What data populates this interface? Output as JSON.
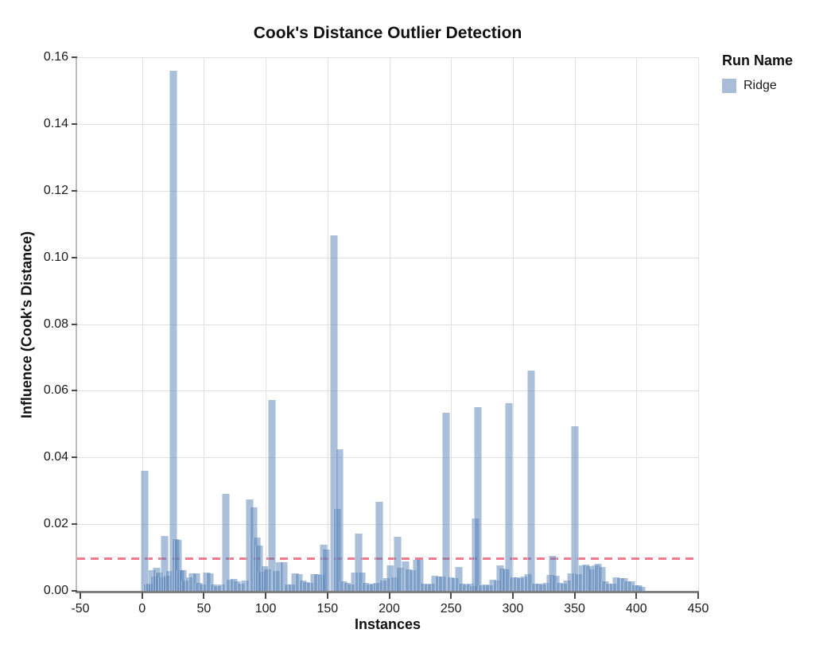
{
  "title": "Cook's Distance Outlier Detection",
  "legend": {
    "title": "Run Name",
    "items": [
      {
        "label": "Ridge",
        "color": "#a9bdd8"
      }
    ]
  },
  "colors": {
    "bar_fill_rgba": "rgba(83,127,181,0.5)",
    "threshold_line": "#f3798e",
    "grid": "#e0e0e0",
    "left_spine": "#bdbdbd",
    "bottom_spine": "#7f7f7f",
    "text": "#111111"
  },
  "chart_data": {
    "type": "bar",
    "title": "Cook's Distance Outlier Detection",
    "xlabel": "Instances",
    "ylabel": "Influence (Cook's Distance)",
    "xlim": [
      -50,
      450
    ],
    "ylim": [
      0,
      0.16
    ],
    "x_ticks": [
      -50,
      0,
      50,
      100,
      150,
      200,
      250,
      300,
      350,
      400,
      450
    ],
    "x_tick_labels": [
      "-50",
      "0",
      "50",
      "100",
      "150",
      "200",
      "250",
      "300",
      "350",
      "400",
      "450"
    ],
    "y_ticks": [
      0,
      0.02,
      0.04,
      0.06,
      0.08,
      0.1,
      0.12,
      0.14,
      0.16
    ],
    "y_tick_labels": [
      "0.00",
      "0.02",
      "0.04",
      "0.06",
      "0.08",
      "0.10",
      "0.12",
      "0.14",
      "0.16"
    ],
    "grid": true,
    "legend_position": "right",
    "threshold": 0.01,
    "series": [
      {
        "name": "Ridge",
        "points": [
          [
            2,
            0.036
          ],
          [
            4,
            0.002
          ],
          [
            6,
            0.0021
          ],
          [
            8,
            0.0063
          ],
          [
            10,
            0.0042
          ],
          [
            12,
            0.0069
          ],
          [
            14,
            0.0055
          ],
          [
            16,
            0.004
          ],
          [
            18,
            0.0165
          ],
          [
            20,
            0.0045
          ],
          [
            22,
            0.006
          ],
          [
            25,
            0.156
          ],
          [
            27,
            0.0155
          ],
          [
            29,
            0.0152
          ],
          [
            31,
            0.0063
          ],
          [
            33,
            0.0062
          ],
          [
            35,
            0.003
          ],
          [
            38,
            0.0041
          ],
          [
            41,
            0.0052
          ],
          [
            44,
            0.0053
          ],
          [
            46,
            0.0025
          ],
          [
            49,
            0.002
          ],
          [
            52,
            0.0055
          ],
          [
            55,
            0.0052
          ],
          [
            58,
            0.002
          ],
          [
            61,
            0.0015
          ],
          [
            64,
            0.002
          ],
          [
            68,
            0.029
          ],
          [
            71,
            0.0033
          ],
          [
            74,
            0.0035
          ],
          [
            77,
            0.0028
          ],
          [
            80,
            0.0022
          ],
          [
            83,
            0.003
          ],
          [
            87,
            0.0275
          ],
          [
            90,
            0.025
          ],
          [
            93,
            0.016
          ],
          [
            95,
            0.0135
          ],
          [
            97,
            0.0057
          ],
          [
            99,
            0.0075
          ],
          [
            101,
            0.0065
          ],
          [
            105,
            0.0572
          ],
          [
            108,
            0.006
          ],
          [
            111,
            0.0087
          ],
          [
            115,
            0.0086
          ],
          [
            118,
            0.0019
          ],
          [
            121,
            0.002
          ],
          [
            124,
            0.0052
          ],
          [
            127,
            0.0051
          ],
          [
            130,
            0.0031
          ],
          [
            133,
            0.0026
          ],
          [
            136,
            0.0025
          ],
          [
            139,
            0.005
          ],
          [
            142,
            0.0049
          ],
          [
            145,
            0.0048
          ],
          [
            147,
            0.0138
          ],
          [
            149,
            0.0125
          ],
          [
            155,
            0.1065
          ],
          [
            158,
            0.0245
          ],
          [
            160,
            0.0425
          ],
          [
            163,
            0.0028
          ],
          [
            166,
            0.0025
          ],
          [
            169,
            0.002
          ],
          [
            172,
            0.0055
          ],
          [
            175,
            0.0171
          ],
          [
            178,
            0.0056
          ],
          [
            181,
            0.0023
          ],
          [
            184,
            0.002
          ],
          [
            187,
            0.0022
          ],
          [
            190,
            0.0024
          ],
          [
            192,
            0.0267
          ],
          [
            195,
            0.003
          ],
          [
            198,
            0.0038
          ],
          [
            201,
            0.0076
          ],
          [
            204,
            0.004
          ],
          [
            207,
            0.0162
          ],
          [
            209,
            0.0069
          ],
          [
            213,
            0.0088
          ],
          [
            216,
            0.0064
          ],
          [
            219,
            0.0063
          ],
          [
            222,
            0.0093
          ],
          [
            225,
            0.0092
          ],
          [
            228,
            0.0022
          ],
          [
            231,
            0.002
          ],
          [
            234,
            0.0021
          ],
          [
            237,
            0.0045
          ],
          [
            240,
            0.0044
          ],
          [
            243,
            0.0042
          ],
          [
            246,
            0.0533
          ],
          [
            250,
            0.004
          ],
          [
            253,
            0.0039
          ],
          [
            256,
            0.0072
          ],
          [
            259,
            0.0021
          ],
          [
            262,
            0.002
          ],
          [
            265,
            0.0022
          ],
          [
            268,
            0.0015
          ],
          [
            270,
            0.0216
          ],
          [
            272,
            0.0551
          ],
          [
            275,
            0.0017
          ],
          [
            278,
            0.0018
          ],
          [
            281,
            0.0017
          ],
          [
            284,
            0.0033
          ],
          [
            287,
            0.0032
          ],
          [
            290,
            0.0076
          ],
          [
            292,
            0.0067
          ],
          [
            294,
            0.0065
          ],
          [
            297,
            0.0562
          ],
          [
            300,
            0.0041
          ],
          [
            303,
            0.004
          ],
          [
            306,
            0.0038
          ],
          [
            309,
            0.0043
          ],
          [
            312,
            0.005
          ],
          [
            315,
            0.066
          ],
          [
            318,
            0.0021
          ],
          [
            321,
            0.0022
          ],
          [
            324,
            0.002
          ],
          [
            327,
            0.0025
          ],
          [
            330,
            0.0047
          ],
          [
            332,
            0.0105
          ],
          [
            335,
            0.0046
          ],
          [
            338,
            0.0025
          ],
          [
            341,
            0.0022
          ],
          [
            344,
            0.003
          ],
          [
            347,
            0.0052
          ],
          [
            350,
            0.0494
          ],
          [
            353,
            0.005
          ],
          [
            356,
            0.0077
          ],
          [
            359,
            0.0079
          ],
          [
            362,
            0.0073
          ],
          [
            364,
            0.0065
          ],
          [
            367,
            0.0077
          ],
          [
            369,
            0.0081
          ],
          [
            372,
            0.0071
          ],
          [
            375,
            0.0029
          ],
          [
            378,
            0.0021
          ],
          [
            381,
            0.0022
          ],
          [
            384,
            0.004
          ],
          [
            387,
            0.0038
          ],
          [
            390,
            0.0037
          ],
          [
            393,
            0.0029
          ],
          [
            396,
            0.0028
          ],
          [
            399,
            0.0017
          ],
          [
            402,
            0.0016
          ],
          [
            404,
            0.0012
          ]
        ]
      }
    ]
  }
}
